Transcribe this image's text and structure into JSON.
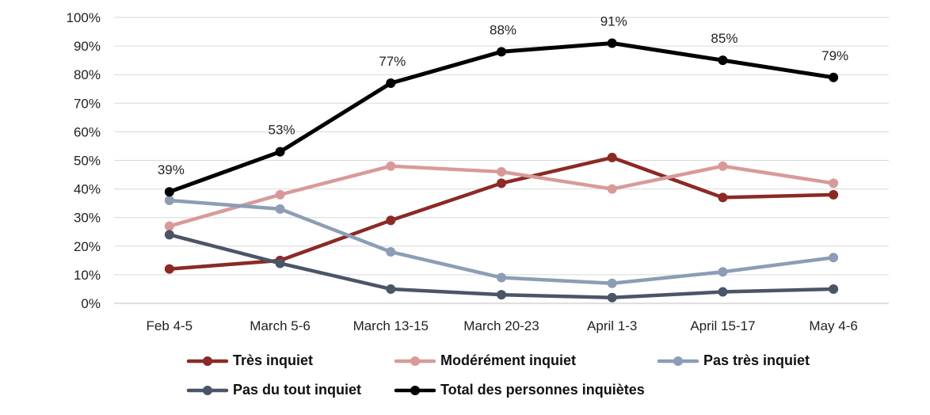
{
  "chart_data": {
    "type": "line",
    "categories": [
      "Feb 4-5",
      "March 5-6",
      "March 13-15",
      "March 20-23",
      "April 1-3",
      "April 15-17",
      "May 4-6"
    ],
    "ylim": [
      0,
      100
    ],
    "yticks": [
      "0%",
      "10%",
      "20%",
      "30%",
      "40%",
      "50%",
      "60%",
      "70%",
      "80%",
      "90%",
      "100%"
    ],
    "grid": "horizontal",
    "legend_position": "bottom",
    "series": [
      {
        "name": "Très inquiet",
        "color": "#8b2a25",
        "values": [
          12,
          15,
          29,
          42,
          51,
          37,
          38
        ]
      },
      {
        "name": "Modérément inquiet",
        "color": "#d89a99",
        "values": [
          27,
          38,
          48,
          46,
          40,
          48,
          42
        ]
      },
      {
        "name": "Pas très inquiet",
        "color": "#8c9db5",
        "values": [
          36,
          33,
          18,
          9,
          7,
          11,
          16
        ]
      },
      {
        "name": "Pas du tout inquiet",
        "color": "#4a5567",
        "values": [
          24,
          14,
          5,
          3,
          2,
          4,
          5
        ]
      },
      {
        "name": "Total des personnes inquiètes",
        "color": "#000000",
        "values": [
          39,
          53,
          77,
          88,
          91,
          85,
          79
        ],
        "data_labels": [
          "39%",
          "53%",
          "77%",
          "88%",
          "91%",
          "85%",
          "79%"
        ]
      }
    ]
  }
}
